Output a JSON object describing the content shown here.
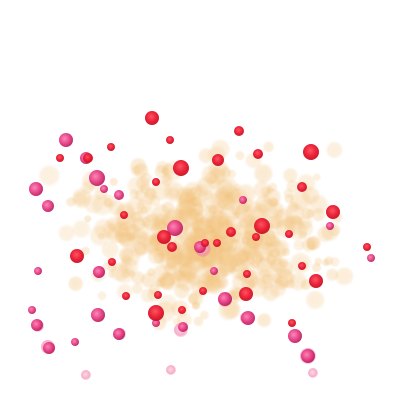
{
  "image": {
    "background": "#ffffff",
    "palette": {
      "cream": "#f3c98a",
      "peach": "#f0b070",
      "red": "#e8182e",
      "magenta": "#e0307a",
      "pink": "#f07aa6"
    }
  }
}
